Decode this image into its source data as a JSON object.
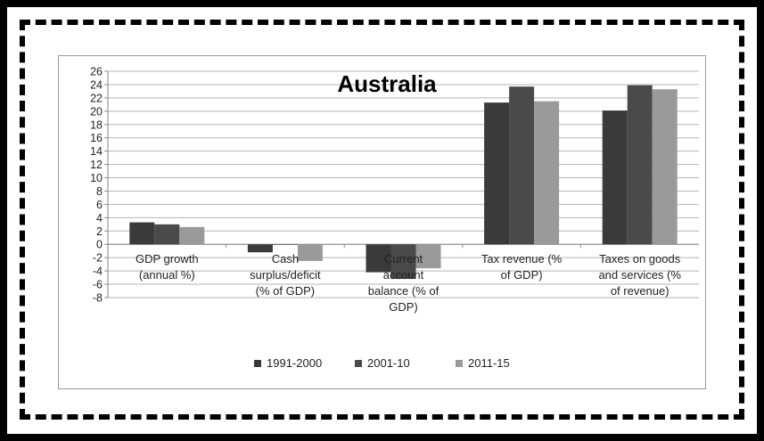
{
  "chart_data": {
    "type": "bar",
    "title": "Australia",
    "categories": [
      [
        "GDP growth",
        "(annual %)"
      ],
      [
        "Cash",
        "surplus/deficit",
        "(% of GDP)"
      ],
      [
        "Current",
        "account",
        "balance (% of",
        "GDP)"
      ],
      [
        "Tax revenue (%",
        "of GDP)"
      ],
      [
        "Taxes on goods",
        "and services (%",
        "of revenue)"
      ]
    ],
    "series": [
      {
        "name": "1991-2000",
        "color": "#3a3a3a",
        "values": [
          3.3,
          -1.2,
          -4.2,
          21.3,
          20.1
        ]
      },
      {
        "name": "2001-10",
        "color": "#4a4a4a",
        "values": [
          3.0,
          0.0,
          -5.2,
          23.7,
          23.9
        ]
      },
      {
        "name": "2011-15",
        "color": "#9a9a9a",
        "values": [
          2.6,
          -2.5,
          -3.6,
          21.5,
          23.3
        ]
      }
    ],
    "ylim": [
      -8,
      26
    ],
    "yticks": [
      "-8",
      "-6",
      "-4",
      "-2",
      "0",
      "2",
      "4",
      "6",
      "8",
      "10",
      "12",
      "14",
      "16",
      "18",
      "20",
      "22",
      "24",
      "26"
    ],
    "grid": true,
    "legend_position": "bottom"
  }
}
